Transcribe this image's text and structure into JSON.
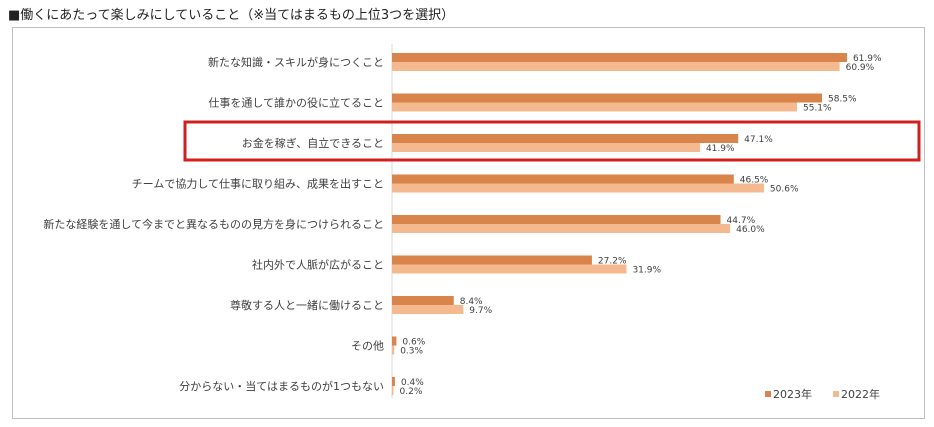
{
  "title": "■働くにあたって楽しみにしていること（※当てはまるもの上位3つを選択）",
  "colors": {
    "series_2023": "#d9844a",
    "series_2022": "#f4b98f",
    "highlight": "#d01f1f"
  },
  "chart_data": {
    "type": "bar",
    "orientation": "horizontal",
    "title": "■働くにあたって楽しみにしていること（※当てはまるもの上位3つを選択）",
    "categories": [
      "新たな知識・スキルが身につくこと",
      "仕事を通して誰かの役に立てること",
      "お金を稼ぎ、自立できること",
      "チームで協力して仕事に取り組み、成果を出すこと",
      "新たな経験を通して今までと異なるものの見方を身につけられること",
      "社内外で人脈が広がること",
      "尊敬する人と一緒に働けること",
      "その他",
      "分からない・当てはまるものが1つもない"
    ],
    "series": [
      {
        "name": "2023年",
        "values": [
          61.9,
          58.5,
          47.1,
          46.5,
          44.7,
          27.2,
          8.4,
          0.6,
          0.4
        ],
        "labels": [
          "61.9%",
          "58.5%",
          "47.1%",
          "46.5%",
          "44.7%",
          "27.2%",
          "8.4%",
          "0.6%",
          "0.4%"
        ]
      },
      {
        "name": "2022年",
        "values": [
          60.9,
          55.1,
          41.9,
          50.6,
          46.0,
          31.9,
          9.7,
          0.3,
          0.2
        ],
        "labels": [
          "60.9%",
          "55.1%",
          "41.9%",
          "50.6%",
          "46.0%",
          "31.9%",
          "9.7%",
          "0.3%",
          "0.2%"
        ]
      }
    ],
    "xlim": [
      0,
      70
    ],
    "highlighted_category": "お金を稼ぎ、自立できること",
    "legend": {
      "position": "bottom-right",
      "marker": "■"
    }
  }
}
